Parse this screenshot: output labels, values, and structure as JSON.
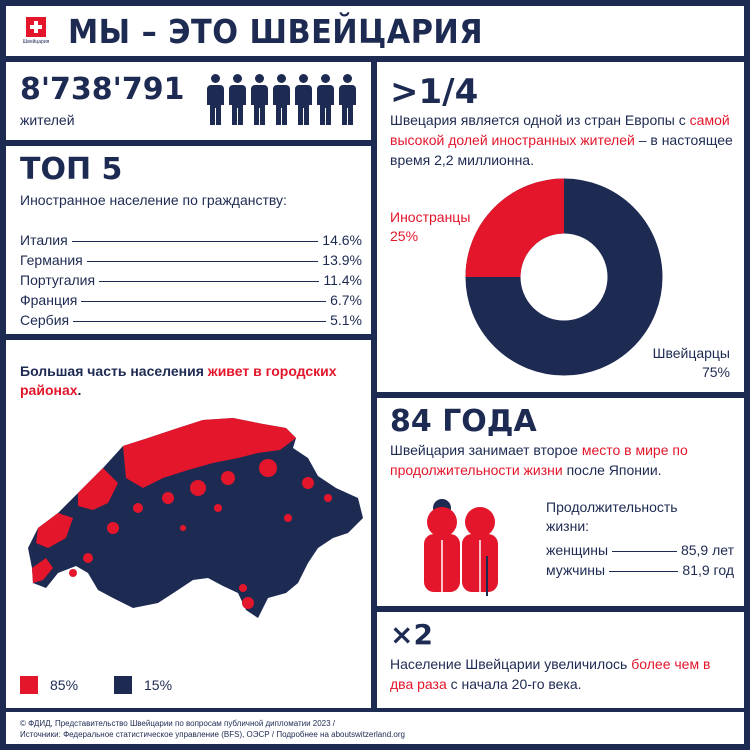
{
  "header": {
    "flag_caption": "Швейцария",
    "title": "МЫ – ЭТО ШВЕЙЦАРИЯ"
  },
  "population": {
    "number": "8'738'791",
    "label": "жителей"
  },
  "top5": {
    "title": "ТОП 5",
    "subtitle": "Иностранное население по гражданству:",
    "rows": [
      {
        "country": "Италия",
        "value": "14.6%"
      },
      {
        "country": "Германия",
        "value": "13.9%"
      },
      {
        "country": "Португалия",
        "value": "11.4%"
      },
      {
        "country": "Франция",
        "value": "6.7%"
      },
      {
        "country": "Сербия",
        "value": "5.1%"
      }
    ]
  },
  "map": {
    "text_a": "Большая часть населения ",
    "text_b": "живет в городских районах",
    "text_c": ".",
    "legend": [
      {
        "label": "85%",
        "color": "#e3162b"
      },
      {
        "label": "15%",
        "color": "#1d2a52"
      }
    ]
  },
  "foreign": {
    "fraction": ">1/4",
    "text_a": "Швецария является одной из стран Европы с ",
    "text_b": "самой высокой долей иностранных жителей",
    "text_c": " – в настоящее время 2,2 миллионна.",
    "donut": {
      "foreign_label": "Иностранцы",
      "foreign_value": "25%",
      "foreign_fraction": 0.25,
      "swiss_label": "Швейцарцы",
      "swiss_value": "75%",
      "foreign_color": "#e3162b",
      "swiss_color": "#1d2a52"
    }
  },
  "life": {
    "title": "84 ГОДА",
    "text_a": "Швейцария занимает второе ",
    "text_b": "место в мире по продолжительности жизни",
    "text_c": " после Японии.",
    "label": "Продолжительность жизни:",
    "rows": [
      {
        "label": "женщины",
        "value": "85,9 лет"
      },
      {
        "label": "мужчины",
        "value": "81,9 год"
      }
    ]
  },
  "growth": {
    "title": "×2",
    "text_a": "Население Швейцарии увеличилось ",
    "text_b": "более чем в два раза",
    "text_c": " с начала 20-го века."
  },
  "footer": {
    "line1": "© ФДИД, Представительство Швейцарии по вопросам публичной дипломатии 2023 /",
    "line2": "Источники: Федеральное статистическое управление (BFS), ОЭСР / Подробнее на aboutswitzerland.org"
  },
  "colors": {
    "navy": "#1d2a52",
    "red": "#e3162b"
  }
}
